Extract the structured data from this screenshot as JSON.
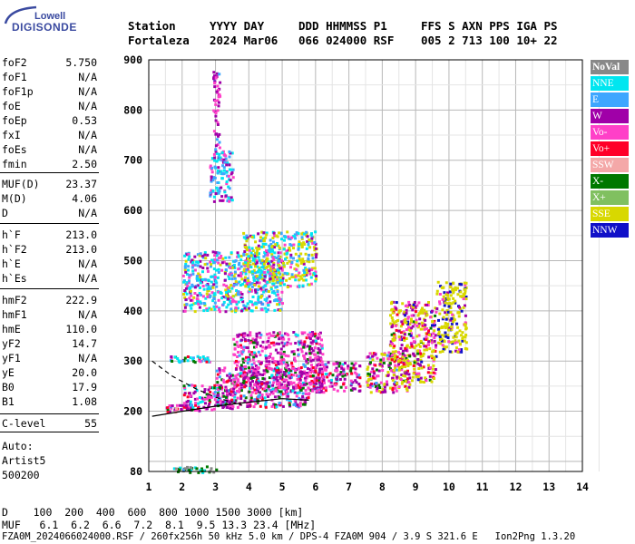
{
  "logo": {
    "line1": "Lowell",
    "line2": "DIGISONDE"
  },
  "header": {
    "row1": [
      "Station",
      "YYYY DAY",
      "DDD HHMMSS P1",
      "FFS S AXN PPS IGA PS"
    ],
    "row2": [
      "Fortaleza",
      "2024 Mar06",
      "066 024000 RSF",
      "005 2 713 100 10+ 22"
    ]
  },
  "params": [
    {
      "name": "foF2",
      "value": "5.750"
    },
    {
      "name": "foF1",
      "value": "N/A"
    },
    {
      "name": "foF1p",
      "value": "N/A"
    },
    {
      "name": "foE",
      "value": "N/A"
    },
    {
      "name": "foEp",
      "value": "0.53"
    },
    {
      "name": "fxI",
      "value": "N/A"
    },
    {
      "name": "foEs",
      "value": "N/A"
    },
    {
      "name": "fmin",
      "value": "2.50"
    },
    {
      "name": "MUF(D)",
      "value": "23.37"
    },
    {
      "name": "M(D)",
      "value": "4.06"
    },
    {
      "name": "D",
      "value": "N/A"
    },
    {
      "name": "h`F",
      "value": "213.0"
    },
    {
      "name": "h`F2",
      "value": "213.0"
    },
    {
      "name": "h`E",
      "value": "N/A"
    },
    {
      "name": "h`Es",
      "value": "N/A"
    },
    {
      "name": "hmF2",
      "value": "222.9"
    },
    {
      "name": "hmF1",
      "value": "N/A"
    },
    {
      "name": "hmE",
      "value": "110.0"
    },
    {
      "name": "yF2",
      "value": "14.7"
    },
    {
      "name": "yF1",
      "value": "N/A"
    },
    {
      "name": "yE",
      "value": "20.0"
    },
    {
      "name": "B0",
      "value": "17.9"
    },
    {
      "name": "B1",
      "value": "1.08"
    },
    {
      "name": "C-level",
      "value": "55"
    }
  ],
  "autoscale": {
    "line1": "Auto:",
    "line2": "Artist5",
    "line3": "500200"
  },
  "legend": [
    {
      "label": "NoVal",
      "color": "#888888"
    },
    {
      "label": "NNE",
      "color": "#00e6f0"
    },
    {
      "label": "E",
      "color": "#3ea6ff"
    },
    {
      "label": "W",
      "color": "#a000a8"
    },
    {
      "label": "Vo-",
      "color": "#ff40c8"
    },
    {
      "label": "Vo+",
      "color": "#ff0028"
    },
    {
      "label": "SSW",
      "color": "#f4a8a8"
    },
    {
      "label": "X-",
      "color": "#007800"
    },
    {
      "label": "X+",
      "color": "#80c060"
    },
    {
      "label": "SSE",
      "color": "#d8d800"
    },
    {
      "label": "NNW",
      "color": "#1010c8"
    }
  ],
  "footer": {
    "d_row": "D    100  200  400  600  800 1000 1500 3000 [km]",
    "muf_row": "MUF   6.1  6.2  6.6  7.2  8.1  9.5 13.3 23.4 [MHz]",
    "file_row": "FZA0M_2024066024000.RSF / 260fx256h 50 kHz 5.0 km / DPS-4 FZA0M 904 / 3.9 S 321.6 E   Ion2Png 1.3.20"
  },
  "chart_data": {
    "type": "scatter",
    "xlim": [
      1,
      14
    ],
    "ylim": [
      80,
      900
    ],
    "x_ticks": [
      "1",
      "2",
      "3",
      "4",
      "5",
      "6",
      "7",
      "8",
      "9",
      "10",
      "11",
      "12",
      "13",
      "14"
    ],
    "y_ticks": [
      "80",
      "200",
      "300",
      "400",
      "500",
      "600",
      "700",
      "800",
      "900"
    ],
    "y_tick_values": [
      80,
      200,
      300,
      400,
      500,
      600,
      700,
      800,
      900
    ],
    "clusters": [
      {
        "x": [
          1.6,
          3.0
        ],
        "y": [
          80,
          92
        ],
        "weights": [
          0.35,
          0.3,
          0.1,
          0,
          0,
          0,
          0,
          0.25,
          0,
          0,
          0
        ]
      },
      {
        "x": [
          1.5,
          2.5
        ],
        "y": [
          200,
          215
        ],
        "weights": [
          0.05,
          0.05,
          0.1,
          0.3,
          0.3,
          0.1,
          0.1,
          0.1,
          0,
          0,
          0
        ]
      },
      {
        "x": [
          2.0,
          3.6
        ],
        "y": [
          205,
          255
        ],
        "weights": [
          0,
          0.1,
          0.1,
          0.3,
          0.3,
          0.1,
          0,
          0.1,
          0,
          0,
          0
        ]
      },
      {
        "x": [
          3.0,
          5.8
        ],
        "y": [
          210,
          290
        ],
        "weights": [
          0,
          0.05,
          0.1,
          0.3,
          0.3,
          0.1,
          0,
          0.15,
          0,
          0,
          0
        ]
      },
      {
        "x": [
          3.5,
          6.2
        ],
        "y": [
          240,
          360
        ],
        "weights": [
          0,
          0.05,
          0.05,
          0.35,
          0.35,
          0.1,
          0,
          0.1,
          0,
          0,
          0
        ]
      },
      {
        "x": [
          5.8,
          7.3
        ],
        "y": [
          240,
          300
        ],
        "weights": [
          0,
          0.05,
          0.05,
          0.35,
          0.35,
          0.1,
          0,
          0.1,
          0,
          0,
          0
        ]
      },
      {
        "x": [
          7.5,
          8.8
        ],
        "y": [
          240,
          320
        ],
        "weights": [
          0,
          0,
          0.05,
          0.25,
          0.25,
          0.1,
          0,
          0.1,
          0,
          0.25,
          0
        ]
      },
      {
        "x": [
          8.2,
          9.6
        ],
        "y": [
          260,
          420
        ],
        "weights": [
          0,
          0,
          0,
          0.15,
          0.2,
          0.1,
          0,
          0.05,
          0,
          0.45,
          0.05
        ]
      },
      {
        "x": [
          9.6,
          10.5
        ],
        "y": [
          320,
          460
        ],
        "weights": [
          0,
          0,
          0,
          0.05,
          0.05,
          0,
          0,
          0,
          0,
          0.7,
          0.2
        ]
      },
      {
        "x": [
          1.6,
          2.8
        ],
        "y": [
          300,
          312
        ],
        "weights": [
          0,
          0.3,
          0.2,
          0.1,
          0.2,
          0.1,
          0,
          0.1,
          0,
          0,
          0
        ]
      },
      {
        "x": [
          2.0,
          5.0
        ],
        "y": [
          400,
          520
        ],
        "weights": [
          0,
          0.3,
          0.2,
          0.15,
          0.2,
          0,
          0,
          0,
          0,
          0.15,
          0
        ]
      },
      {
        "x": [
          3.8,
          6.0
        ],
        "y": [
          450,
          560
        ],
        "weights": [
          0,
          0.2,
          0.15,
          0.1,
          0.1,
          0,
          0,
          0,
          0,
          0.45,
          0
        ]
      },
      {
        "x": [
          2.8,
          3.5
        ],
        "y": [
          620,
          720
        ],
        "weights": [
          0,
          0.3,
          0.3,
          0.2,
          0.2,
          0,
          0,
          0,
          0,
          0,
          0
        ]
      },
      {
        "x": [
          2.9,
          3.1
        ],
        "y": [
          720,
          880
        ],
        "weights": [
          0,
          0,
          0.1,
          0.5,
          0.4,
          0,
          0,
          0,
          0,
          0,
          0
        ]
      }
    ],
    "traces": [
      {
        "style": "dashed",
        "x": [
          1.1,
          1.7,
          2.4,
          3.0,
          3.8
        ],
        "y": [
          300,
          270,
          245,
          228,
          212
        ]
      },
      {
        "style": "solid",
        "x": [
          1.1,
          2.0,
          3.0,
          4.0,
          5.0,
          5.8
        ],
        "y": [
          190,
          200,
          210,
          218,
          225,
          222
        ]
      }
    ]
  }
}
